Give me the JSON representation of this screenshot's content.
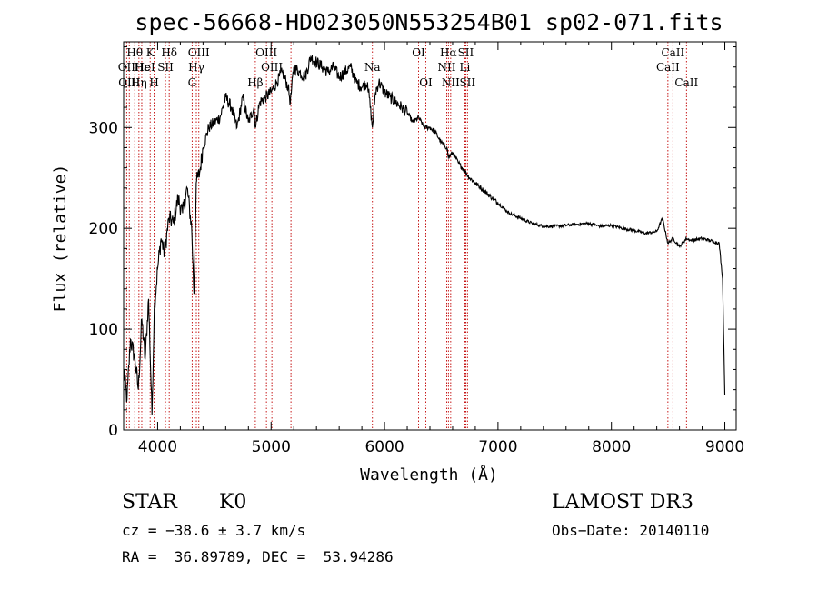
{
  "chart_data": {
    "type": "line",
    "title": "spec-56668-HD023050N553254B01_sp02-071.fits",
    "xlabel": "Wavelength (Å)",
    "ylabel": "Flux (relative)",
    "xlim": [
      3700,
      9100
    ],
    "ylim": [
      0,
      385
    ],
    "xticks": [
      4000,
      5000,
      6000,
      7000,
      8000,
      9000
    ],
    "yticks": [
      0,
      100,
      200,
      300
    ],
    "grid": false,
    "series": [
      {
        "x": [
          3700,
          3730,
          3760,
          3800,
          3830,
          3860,
          3890,
          3920,
          3950,
          3970,
          4000,
          4030,
          4060,
          4100,
          4140,
          4180,
          4220,
          4260,
          4300,
          4320,
          4340,
          4370,
          4400,
          4450,
          4500,
          4550,
          4600,
          4650,
          4700,
          4750,
          4800,
          4850,
          4861,
          4900,
          4950,
          5000,
          5050,
          5100,
          5150,
          5170,
          5200,
          5250,
          5300,
          5350,
          5400,
          5450,
          5500,
          5550,
          5600,
          5650,
          5700,
          5750,
          5800,
          5850,
          5893,
          5920,
          5950,
          6000,
          6050,
          6100,
          6150,
          6200,
          6250,
          6300,
          6350,
          6400,
          6450,
          6500,
          6550,
          6563,
          6600,
          6650,
          6700,
          6750,
          6800,
          6850,
          6900,
          6950,
          7000,
          7050,
          7100,
          7200,
          7300,
          7400,
          7500,
          7600,
          7700,
          7800,
          7900,
          8000,
          8100,
          8200,
          8300,
          8400,
          8450,
          8498,
          8542,
          8600,
          8662,
          8700,
          8800,
          8900,
          8950,
          8980,
          9000
        ],
        "y": [
          60,
          30,
          90,
          70,
          40,
          110,
          70,
          130,
          15,
          120,
          160,
          190,
          175,
          210,
          205,
          230,
          215,
          240,
          200,
          135,
          245,
          255,
          280,
          300,
          305,
          310,
          330,
          320,
          300,
          330,
          305,
          320,
          300,
          325,
          330,
          335,
          345,
          355,
          340,
          325,
          360,
          355,
          350,
          370,
          365,
          360,
          355,
          360,
          350,
          355,
          360,
          345,
          340,
          345,
          300,
          335,
          345,
          335,
          330,
          325,
          320,
          315,
          305,
          310,
          300,
          300,
          295,
          285,
          280,
          270,
          275,
          265,
          258,
          250,
          245,
          240,
          235,
          230,
          225,
          220,
          215,
          210,
          205,
          202,
          202,
          203,
          204,
          205,
          202,
          203,
          200,
          198,
          195,
          197,
          210,
          185,
          190,
          182,
          190,
          188,
          190,
          187,
          185,
          150,
          35
        ]
      }
    ],
    "line_marks": [
      {
        "name": "Hθ",
        "x": 3798,
        "row": 0
      },
      {
        "name": "OII",
        "x": 3727,
        "row": 1
      },
      {
        "name": "OIII",
        "x": 3750,
        "row": 2
      },
      {
        "name": "Hη",
        "x": 3835,
        "row": 2
      },
      {
        "name": "Hε",
        "x": 3860,
        "row": 1
      },
      {
        "name": "K",
        "x": 3934,
        "row": 0
      },
      {
        "name": "HeI",
        "x": 3889,
        "row": 1
      },
      {
        "name": "H",
        "x": 3969,
        "row": 2
      },
      {
        "name": "SII",
        "x": 4069,
        "row": 1
      },
      {
        "name": "Hδ",
        "x": 4102,
        "row": 0
      },
      {
        "name": "OIII",
        "x": 4363,
        "row": 0
      },
      {
        "name": "Hγ",
        "x": 4341,
        "row": 1
      },
      {
        "name": "G",
        "x": 4304,
        "row": 2
      },
      {
        "name": "OIII",
        "x": 4959,
        "row": 0
      },
      {
        "name": "OIII",
        "x": 5007,
        "row": 1
      },
      {
        "name": "Hβ",
        "x": 4861,
        "row": 2
      },
      {
        "name": "Na",
        "x": 5893,
        "row": 1
      },
      {
        "name": "OI",
        "x": 6300,
        "row": 0
      },
      {
        "name": "OI",
        "x": 6364,
        "row": 2
      },
      {
        "name": "Hα",
        "x": 6563,
        "row": 0
      },
      {
        "name": "NII",
        "x": 6548,
        "row": 1
      },
      {
        "name": "NII",
        "x": 6583,
        "row": 2
      },
      {
        "name": "SII",
        "x": 6716,
        "row": 0
      },
      {
        "name": "Li",
        "x": 6708,
        "row": 1
      },
      {
        "name": "SII",
        "x": 6731,
        "row": 2
      },
      {
        "name": "CaII",
        "x": 8542,
        "row": 0
      },
      {
        "name": "CaII",
        "x": 8498,
        "row": 1
      },
      {
        "name": "CaII",
        "x": 8662,
        "row": 2
      }
    ],
    "line_mark_xs_extra": [
      5175
    ],
    "line_color": "#c00000"
  },
  "info": {
    "object_class": "STAR",
    "subclass": "K0",
    "survey": "LAMOST DR3",
    "cz": "cz = −38.6 ± 3.7 km/s",
    "obs_date": "Obs−Date: 20140110",
    "coords": "RA =  36.89789, DEC =  53.94286"
  }
}
